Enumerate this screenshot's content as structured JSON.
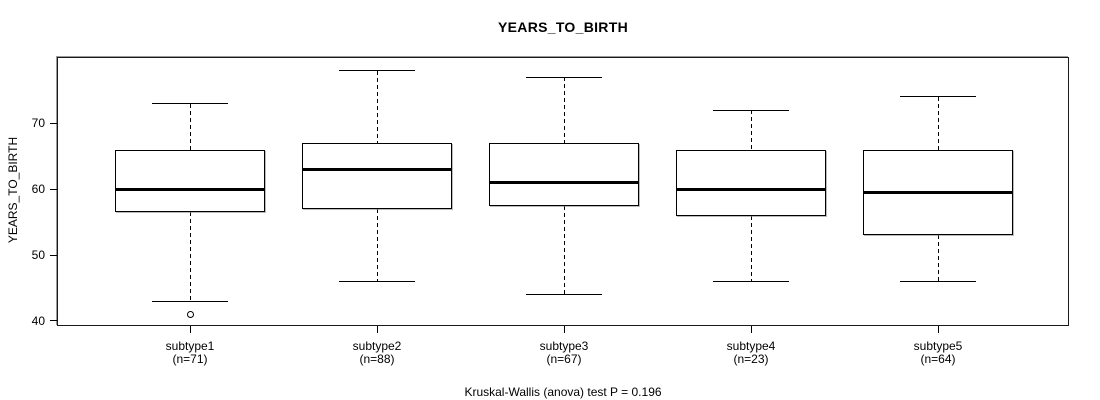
{
  "title": "YEARS_TO_BIRTH",
  "y_axis_label": "YEARS_TO_BIRTH",
  "caption": "Kruskal-Wallis (anova) test P = 0.196",
  "colors": {
    "line": "#000000",
    "background": "#ffffff",
    "frame_shadow": "#9a9a9a"
  },
  "chart_data": {
    "type": "boxplot",
    "title": "YEARS_TO_BIRTH",
    "xlabel": "",
    "ylabel": "YEARS_TO_BIRTH",
    "yticks": [
      40,
      50,
      60,
      70
    ],
    "ylim": [
      39.2,
      80.1
    ],
    "grid": false,
    "legend": false,
    "categories": [
      "subtype1",
      "subtype2",
      "subtype3",
      "subtype4",
      "subtype5"
    ],
    "category_sublabels": [
      "(n=71)",
      "(n=88)",
      "(n=67)",
      "(n=23)",
      "(n=64)"
    ],
    "groups": [
      {
        "label": "subtype1",
        "n": 71,
        "whisker_low": 43,
        "q1": 56.5,
        "median": 60,
        "q3": 66,
        "whisker_high": 73,
        "outliers": [
          41
        ]
      },
      {
        "label": "subtype2",
        "n": 88,
        "whisker_low": 46,
        "q1": 57,
        "median": 63,
        "q3": 67,
        "whisker_high": 78,
        "outliers": []
      },
      {
        "label": "subtype3",
        "n": 67,
        "whisker_low": 44,
        "q1": 57.5,
        "median": 61,
        "q3": 67,
        "whisker_high": 77,
        "outliers": []
      },
      {
        "label": "subtype4",
        "n": 23,
        "whisker_low": 46,
        "q1": 56,
        "median": 60,
        "q3": 66,
        "whisker_high": 72,
        "outliers": []
      },
      {
        "label": "subtype5",
        "n": 64,
        "whisker_low": 46,
        "q1": 53,
        "median": 59.5,
        "q3": 66,
        "whisker_high": 74,
        "outliers": []
      }
    ],
    "annotation": "Kruskal-Wallis (anova) test P = 0.196"
  }
}
